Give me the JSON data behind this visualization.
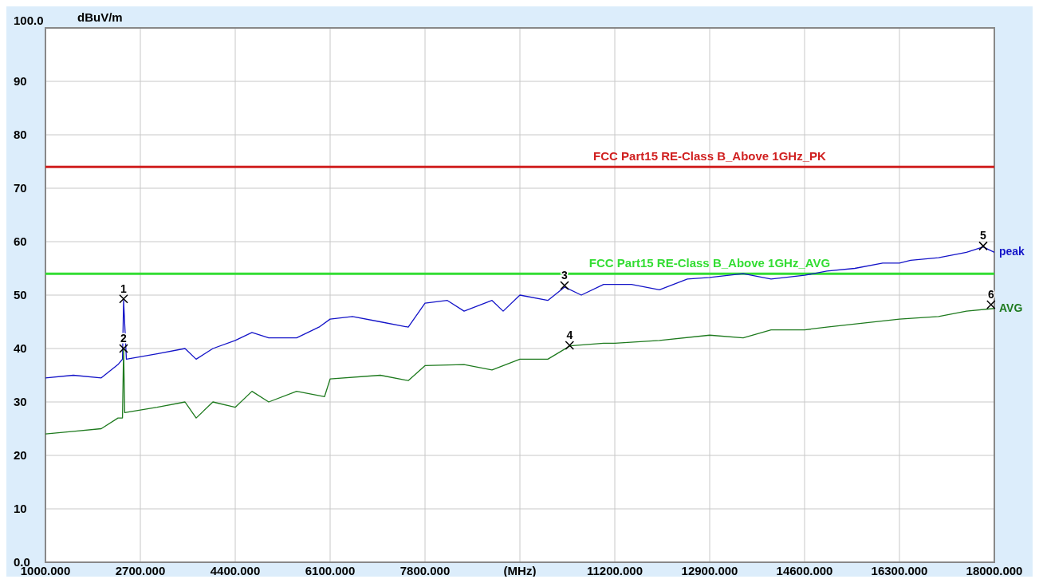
{
  "chart_data": {
    "type": "line",
    "ylabel": "dBuV/m",
    "xlim": [
      1000,
      18000
    ],
    "ylim": [
      0,
      100
    ],
    "xticks": [
      {
        "value": 1000,
        "label": "1000.000"
      },
      {
        "value": 2700,
        "label": "2700.000"
      },
      {
        "value": 4400,
        "label": "4400.000"
      },
      {
        "value": 6100,
        "label": "6100.000"
      },
      {
        "value": 7800,
        "label": "7800.000"
      },
      {
        "value": 9500,
        "label": "(MHz)"
      },
      {
        "value": 11200,
        "label": "11200.000"
      },
      {
        "value": 12900,
        "label": "12900.000"
      },
      {
        "value": 14600,
        "label": "14600.000"
      },
      {
        "value": 16300,
        "label": "16300.000"
      },
      {
        "value": 18000,
        "label": "18000.000"
      }
    ],
    "yticks": [
      {
        "value": 0,
        "label": "0.0"
      },
      10,
      20,
      30,
      40,
      50,
      60,
      70,
      80,
      90,
      {
        "value": 100,
        "label": "100.0"
      }
    ],
    "grid": true,
    "legend": "right",
    "series": [
      {
        "name": "peak",
        "color": "#1414c8",
        "x": [
          1000,
          1500,
          2000,
          2300,
          2380,
          2400,
          2450,
          3000,
          3500,
          3700,
          4000,
          4400,
          4700,
          5000,
          5500,
          5900,
          6100,
          6500,
          7000,
          7500,
          7800,
          8200,
          8500,
          9000,
          9200,
          9500,
          10000,
          10300,
          10600,
          11000,
          11200,
          11500,
          12000,
          12500,
          12900,
          13500,
          14000,
          14600,
          15000,
          15500,
          16000,
          16300,
          16500,
          17000,
          17500,
          17800,
          18000
        ],
        "values": [
          34.5,
          35,
          34.5,
          37,
          38,
          49,
          38,
          39,
          40,
          38,
          40,
          41.5,
          43,
          42,
          42,
          44,
          45.5,
          46,
          45,
          44,
          48.5,
          49,
          47,
          49,
          47,
          50,
          49,
          51.5,
          50,
          52,
          52,
          52,
          51,
          53,
          53.3,
          54,
          53,
          53.7,
          54.5,
          55,
          56,
          56,
          56.5,
          57,
          58,
          59,
          58
        ]
      },
      {
        "name": "AVG",
        "color": "#1e7a1e",
        "x": [
          1000,
          1500,
          2000,
          2300,
          2380,
          2400,
          2420,
          3000,
          3500,
          3700,
          4000,
          4400,
          4700,
          5000,
          5500,
          6000,
          6100,
          7000,
          7500,
          7800,
          8500,
          9000,
          9500,
          10000,
          10400,
          11000,
          11200,
          12000,
          12900,
          13500,
          14000,
          14600,
          15000,
          16300,
          17000,
          17500,
          18000
        ],
        "values": [
          24,
          24.5,
          25,
          27,
          27,
          40,
          28,
          29,
          30,
          27,
          30,
          29,
          32,
          30,
          32,
          31,
          34.3,
          35,
          34,
          36.8,
          37,
          36,
          38,
          38,
          40.5,
          41,
          41,
          41.5,
          42.5,
          42,
          43.5,
          43.5,
          44,
          45.5,
          46,
          47,
          47.5
        ]
      }
    ],
    "ref_lines": [
      {
        "axis": "y",
        "value": 74,
        "label": "FCC Part15 RE-Class B_Above 1GHz_PK",
        "color": "#d02020"
      },
      {
        "axis": "y",
        "value": 54,
        "label": "FCC Part15 RE-Class B_Above 1GHz_AVG",
        "color": "#33dd33"
      }
    ],
    "annotations": [
      {
        "text": "1",
        "x": 2400,
        "y": 49.3
      },
      {
        "text": "2",
        "x": 2400,
        "y": 40
      },
      {
        "text": "3",
        "x": 10300,
        "y": 51.8
      },
      {
        "text": "4",
        "x": 10390,
        "y": 40.6
      },
      {
        "text": "5",
        "x": 17800,
        "y": 59.2
      },
      {
        "text": "6",
        "x": 17940,
        "y": 48.2
      }
    ]
  }
}
